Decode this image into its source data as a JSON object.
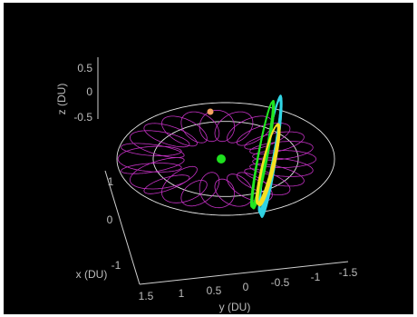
{
  "chart_data": {
    "type": "line",
    "subtype": "3d-orbit-trajectories",
    "title": "",
    "xlabel": "x (DU)",
    "ylabel": "y (DU)",
    "zlabel": "z (DU)",
    "x_ticks": [
      "1",
      "0",
      "-1"
    ],
    "y_ticks": [
      "1.5",
      "1",
      "0.5",
      "0",
      "-0.5",
      "-1",
      "-1.5"
    ],
    "z_ticks": [
      "0.5",
      "0",
      "-0.5"
    ],
    "background": "#000000",
    "grid": false,
    "legend": "none",
    "reference_circles": [
      {
        "radius": 1.0,
        "color": "#e6e6e6"
      },
      {
        "radius": 1.5,
        "color": "#e6e6e6"
      }
    ],
    "central_body": {
      "color": "#1ee01e"
    },
    "secondary_body": {
      "color": "#f4a261"
    },
    "series": [
      {
        "color": "#cc33cc",
        "style": "looping-orbit-family"
      },
      {
        "color": "#33d6e6",
        "style": "halo-family"
      },
      {
        "color": "#22e622",
        "style": "halo-family"
      },
      {
        "color": "#f5e022",
        "style": "halo-family"
      }
    ]
  }
}
